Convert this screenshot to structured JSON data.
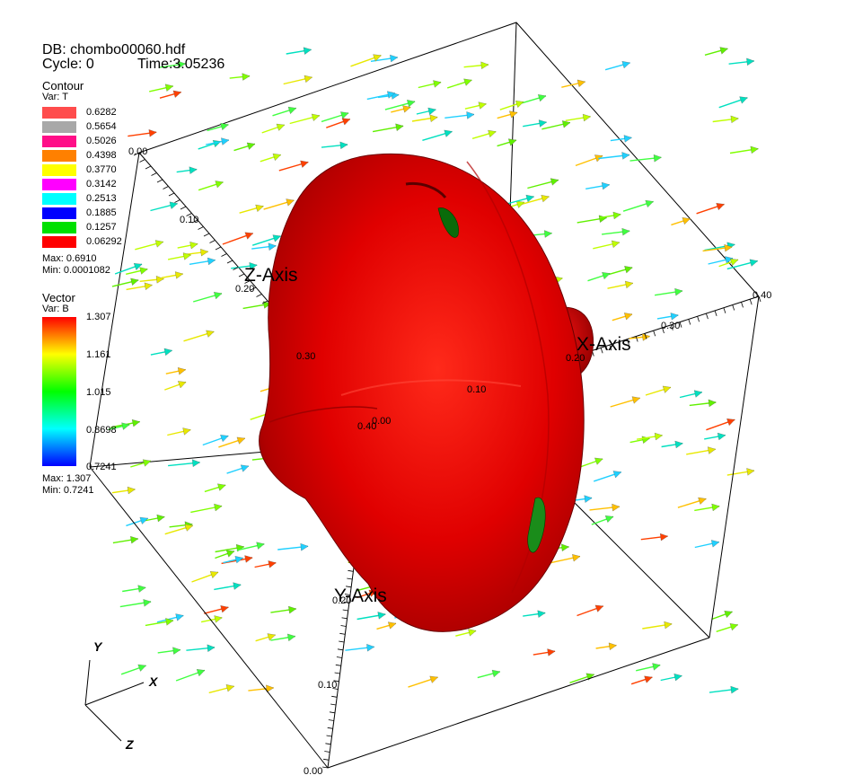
{
  "header": {
    "db_line": "DB: chombo00060.hdf",
    "cycle_label": "Cycle: 0",
    "time_label": "Time:3.05236"
  },
  "contour_legend": {
    "title": "Contour",
    "var": "Var: T",
    "levels": [
      {
        "label": "0.6282",
        "color": "#ff4c4c"
      },
      {
        "label": "0.5654",
        "color": "#a8a8a8"
      },
      {
        "label": "0.5026",
        "color": "#ff0e88"
      },
      {
        "label": "0.4398",
        "color": "#ff8000"
      },
      {
        "label": "0.3770",
        "color": "#ffff00"
      },
      {
        "label": "0.3142",
        "color": "#ff00ff"
      },
      {
        "label": "0.2513",
        "color": "#00ffff"
      },
      {
        "label": "0.1885",
        "color": "#0000ff"
      },
      {
        "label": "0.1257",
        "color": "#00e000"
      },
      {
        "label": "0.06292",
        "color": "#ff0000"
      }
    ],
    "max": "Max:  0.6910",
    "min": "Min:  0.0001082"
  },
  "vector_legend": {
    "title": "Vector",
    "var": "Var: B",
    "ticks": [
      "1.307",
      "1.161",
      "1.015",
      "0.8698",
      "0.7241"
    ],
    "max": "Max:  1.307",
    "min": "Min:  0.7241"
  },
  "axes": {
    "x_title": "X-Axis",
    "y_title": "Y-Axis",
    "z_title": "Z-Axis",
    "x_ticks": [
      "0.10",
      "0.20",
      "0.30",
      "0.40"
    ],
    "y_ticks": [
      "0.00",
      "0.10",
      "0.20"
    ],
    "z_ticks": [
      "0.00",
      "0.10",
      "0.20",
      "0.30",
      "0.40"
    ],
    "origin_label": "0.00"
  },
  "triad": {
    "x": "X",
    "y": "Y",
    "z": "Z"
  },
  "colors": {
    "surface": "#e00000",
    "surface_dark": "#8a0000",
    "box": "#000000",
    "background": "#ffffff"
  }
}
